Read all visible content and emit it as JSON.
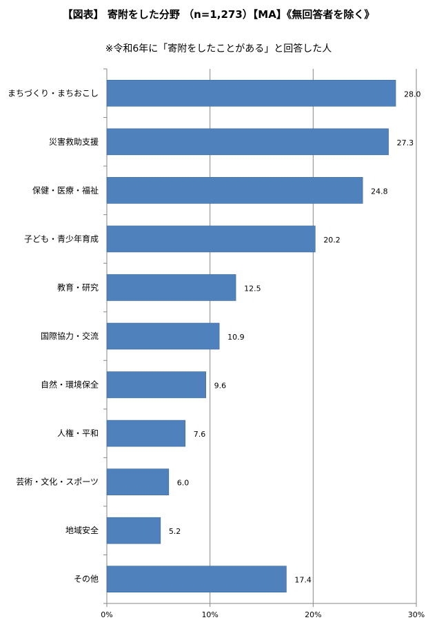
{
  "title": "【図表】 寄附をした分野 （n=1,273）【MA】《無回答者を除く》",
  "subtitle": "※令和6年に「寄附をしたことがある」と回答した人",
  "colors": {
    "bar": "#4f81bd",
    "bar_border": "#3a6896",
    "grid": "#868686",
    "axis": "#868686"
  },
  "chart_data": {
    "type": "bar",
    "orientation": "horizontal",
    "title": "【図表】 寄附をした分野 （n=1,273）【MA】《無回答者を除く》",
    "subtitle": "※令和6年に「寄附をしたことがある」と回答した人",
    "categories": [
      "まちづくり・まちおこし",
      "災害救助支援",
      "保健・医療・福祉",
      "子ども・青少年育成",
      "教育・研究",
      "国際協力・交流",
      "自然・環境保全",
      "人権・平和",
      "芸術・文化・スポーツ",
      "地域安全",
      "その他"
    ],
    "values": [
      28.0,
      27.3,
      24.8,
      20.2,
      12.5,
      10.9,
      9.6,
      7.6,
      6.0,
      5.2,
      17.4
    ],
    "value_labels": [
      "28.0",
      "27.3",
      "24.8",
      "20.2",
      "12.5",
      "10.9",
      "9.6",
      "7.6",
      "6.0",
      "5.2",
      "17.4"
    ],
    "xlim": [
      0,
      30
    ],
    "xticks": [
      0,
      10,
      20,
      30
    ],
    "xtick_labels": [
      "0%",
      "10%",
      "20%",
      "30%"
    ],
    "xlabel": "",
    "ylabel": "",
    "grid": true,
    "legend": "none"
  }
}
